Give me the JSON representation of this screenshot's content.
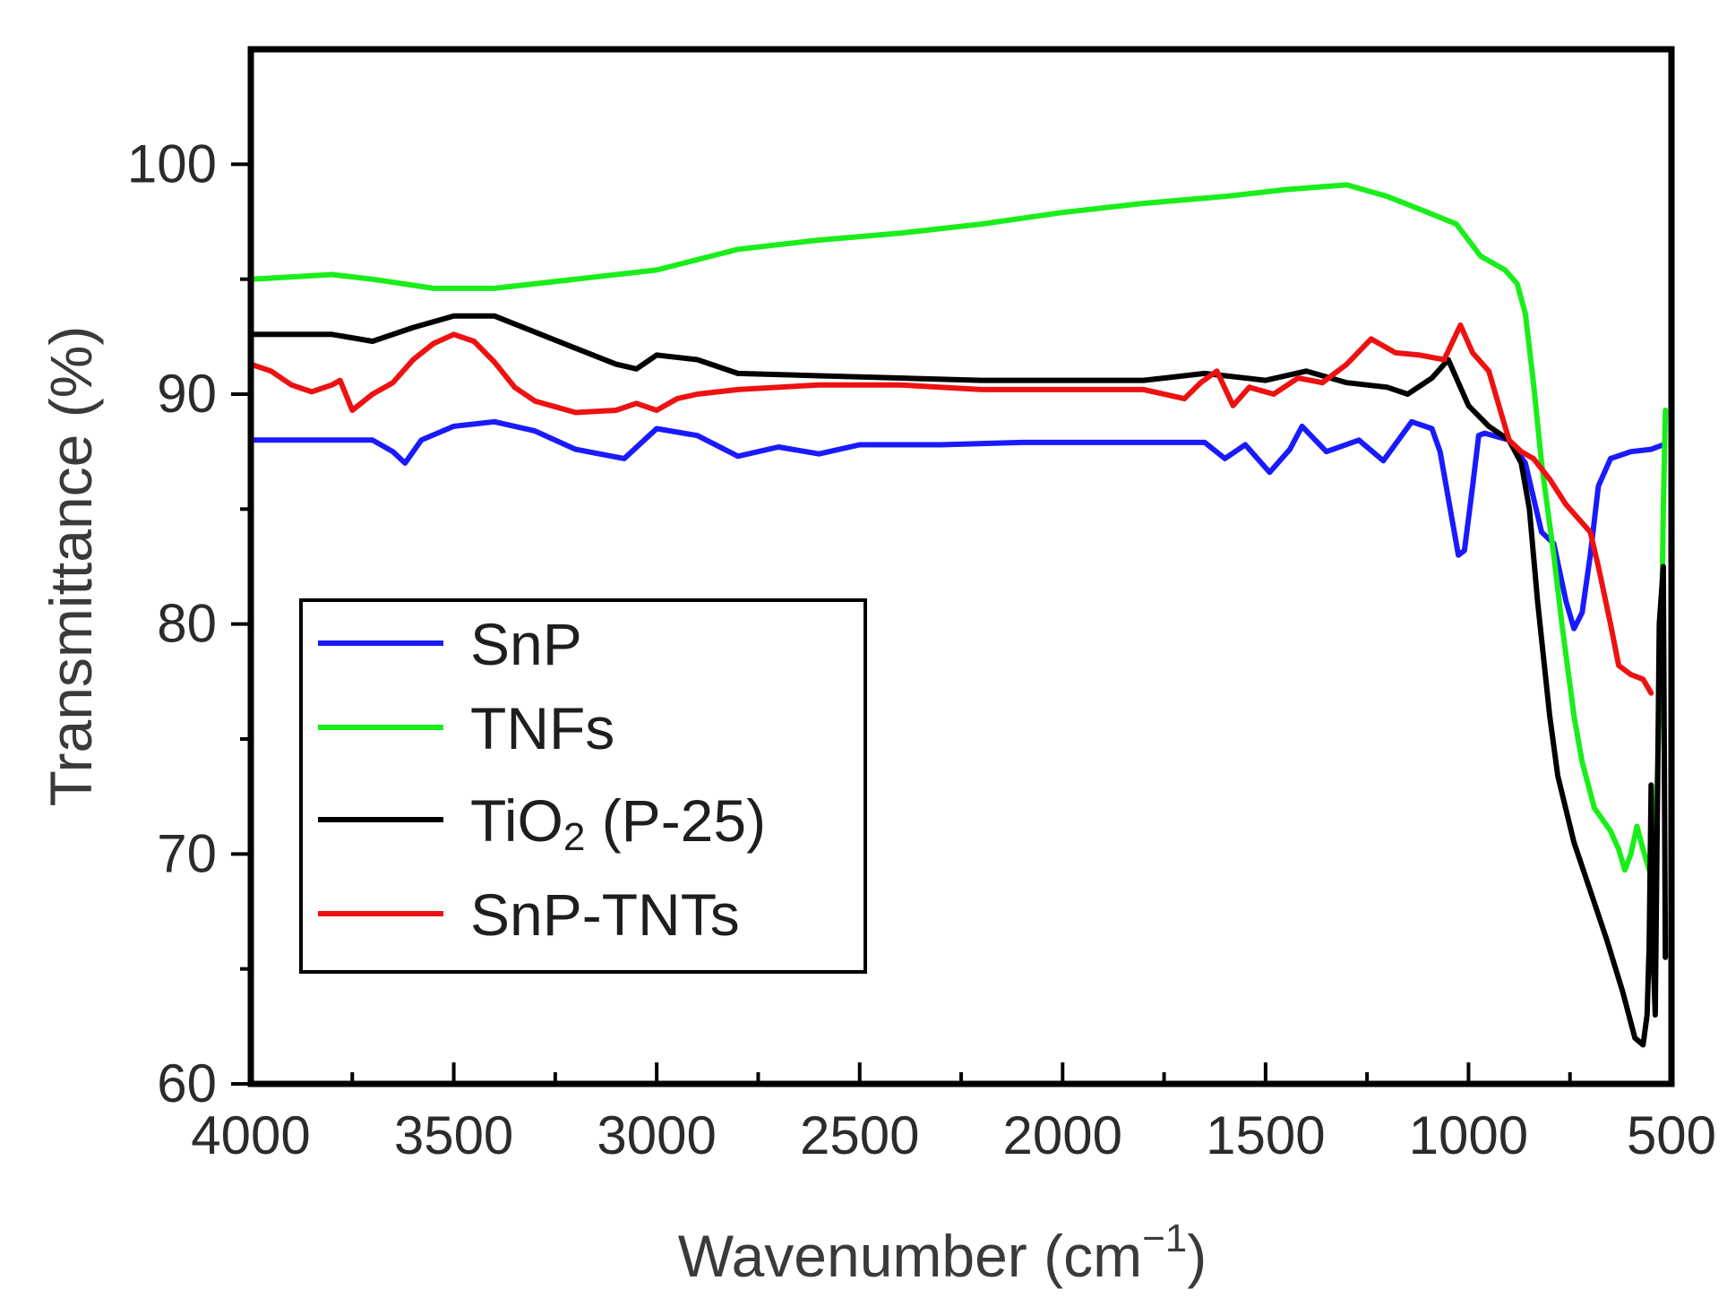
{
  "chart_data": {
    "type": "line",
    "title": "",
    "xlabel": "Wavenumber (cm⁻¹)",
    "xlabel_parts": {
      "main": "Wavenumber (cm",
      "sup": "−1",
      "close": ")"
    },
    "ylabel": "Transmittance (%)",
    "xlim": [
      4000,
      500
    ],
    "ylim": [
      60,
      105
    ],
    "x_ticks": [
      4000,
      3500,
      3000,
      2500,
      2000,
      1500,
      1000,
      500
    ],
    "x_tick_labels": [
      "4000",
      "3500",
      "3000",
      "2500",
      "2000",
      "1500",
      "1000",
      "500"
    ],
    "y_ticks": [
      60,
      70,
      80,
      90,
      100
    ],
    "y_tick_labels": [
      "60",
      "70",
      "80",
      "90",
      "100"
    ],
    "grid": false,
    "legend_position": "lower-left",
    "legend": [
      {
        "label": "SnP",
        "color": "#1a1aff"
      },
      {
        "label": "TNFs",
        "color": "#1aee1a"
      },
      {
        "label_parts": {
          "main": "TiO",
          "sub": "2",
          "rest": " (P-25)"
        },
        "label": "TiO2 (P-25)",
        "color": "#000000"
      },
      {
        "label": "SnP-TNTs",
        "color": "#ee1111"
      }
    ],
    "series": [
      {
        "name": "SnP",
        "color": "#1a1aff",
        "points": [
          [
            4000,
            88
          ],
          [
            3800,
            88
          ],
          [
            3700,
            88
          ],
          [
            3650,
            87.5
          ],
          [
            3620,
            87
          ],
          [
            3580,
            88
          ],
          [
            3500,
            88.6
          ],
          [
            3400,
            88.8
          ],
          [
            3300,
            88.4
          ],
          [
            3200,
            87.6
          ],
          [
            3080,
            87.2
          ],
          [
            3000,
            88.5
          ],
          [
            2900,
            88.2
          ],
          [
            2800,
            87.3
          ],
          [
            2700,
            87.7
          ],
          [
            2600,
            87.4
          ],
          [
            2500,
            87.8
          ],
          [
            2300,
            87.8
          ],
          [
            2100,
            87.9
          ],
          [
            1950,
            87.9
          ],
          [
            1800,
            87.9
          ],
          [
            1650,
            87.9
          ],
          [
            1600,
            87.2
          ],
          [
            1550,
            87.8
          ],
          [
            1490,
            86.6
          ],
          [
            1440,
            87.6
          ],
          [
            1410,
            88.6
          ],
          [
            1350,
            87.5
          ],
          [
            1270,
            88
          ],
          [
            1210,
            87.1
          ],
          [
            1140,
            88.8
          ],
          [
            1090,
            88.5
          ],
          [
            1070,
            87.5
          ],
          [
            1040,
            84.5
          ],
          [
            1025,
            83
          ],
          [
            1010,
            83.2
          ],
          [
            990,
            86
          ],
          [
            975,
            88.2
          ],
          [
            960,
            88.3
          ],
          [
            900,
            88
          ],
          [
            860,
            87
          ],
          [
            820,
            84
          ],
          [
            790,
            83.5
          ],
          [
            760,
            81
          ],
          [
            740,
            79.8
          ],
          [
            720,
            80.5
          ],
          [
            700,
            83
          ],
          [
            680,
            86
          ],
          [
            650,
            87.2
          ],
          [
            600,
            87.5
          ],
          [
            550,
            87.6
          ],
          [
            520,
            87.8
          ]
        ]
      },
      {
        "name": "TNFs",
        "color": "#1aee1a",
        "points": [
          [
            4000,
            95
          ],
          [
            3800,
            95.2
          ],
          [
            3700,
            95
          ],
          [
            3550,
            94.6
          ],
          [
            3400,
            94.6
          ],
          [
            3200,
            95
          ],
          [
            3000,
            95.4
          ],
          [
            2800,
            96.3
          ],
          [
            2600,
            96.7
          ],
          [
            2400,
            97
          ],
          [
            2200,
            97.4
          ],
          [
            2000,
            97.9
          ],
          [
            1800,
            98.3
          ],
          [
            1600,
            98.6
          ],
          [
            1450,
            98.9
          ],
          [
            1300,
            99.1
          ],
          [
            1200,
            98.6
          ],
          [
            1100,
            97.9
          ],
          [
            1030,
            97.4
          ],
          [
            970,
            96
          ],
          [
            910,
            95.4
          ],
          [
            880,
            94.8
          ],
          [
            860,
            93.5
          ],
          [
            840,
            90.5
          ],
          [
            820,
            87
          ],
          [
            790,
            83
          ],
          [
            770,
            80
          ],
          [
            740,
            76
          ],
          [
            720,
            74
          ],
          [
            690,
            72
          ],
          [
            650,
            71
          ],
          [
            630,
            70.2
          ],
          [
            615,
            69.3
          ],
          [
            600,
            70
          ],
          [
            585,
            71.2
          ],
          [
            570,
            70.2
          ],
          [
            555,
            69.3
          ],
          [
            540,
            70.5
          ],
          [
            525,
            79
          ],
          [
            520,
            85
          ],
          [
            515,
            89.3
          ]
        ]
      },
      {
        "name": "TiO2 (P-25)",
        "color": "#000000",
        "points": [
          [
            4000,
            92.6
          ],
          [
            3900,
            92.6
          ],
          [
            3800,
            92.6
          ],
          [
            3700,
            92.3
          ],
          [
            3600,
            92.9
          ],
          [
            3500,
            93.4
          ],
          [
            3400,
            93.4
          ],
          [
            3300,
            92.7
          ],
          [
            3200,
            92
          ],
          [
            3100,
            91.3
          ],
          [
            3050,
            91.1
          ],
          [
            3000,
            91.7
          ],
          [
            2900,
            91.5
          ],
          [
            2800,
            90.9
          ],
          [
            2600,
            90.8
          ],
          [
            2400,
            90.7
          ],
          [
            2200,
            90.6
          ],
          [
            2000,
            90.6
          ],
          [
            1800,
            90.6
          ],
          [
            1650,
            90.9
          ],
          [
            1500,
            90.6
          ],
          [
            1400,
            91
          ],
          [
            1300,
            90.5
          ],
          [
            1200,
            90.3
          ],
          [
            1150,
            90
          ],
          [
            1090,
            90.7
          ],
          [
            1050,
            91.5
          ],
          [
            1000,
            89.5
          ],
          [
            950,
            88.6
          ],
          [
            900,
            88
          ],
          [
            870,
            87
          ],
          [
            850,
            85
          ],
          [
            830,
            81
          ],
          [
            800,
            76
          ],
          [
            780,
            73.4
          ],
          [
            740,
            70.5
          ],
          [
            700,
            68.4
          ],
          [
            660,
            66.3
          ],
          [
            620,
            64
          ],
          [
            590,
            62
          ],
          [
            570,
            61.7
          ],
          [
            560,
            63
          ],
          [
            555,
            66
          ],
          [
            550,
            73
          ],
          [
            545,
            65.5
          ],
          [
            540,
            63
          ],
          [
            530,
            80
          ],
          [
            520,
            82.5
          ],
          [
            515,
            65.5
          ]
        ]
      },
      {
        "name": "SnP-TNTs",
        "color": "#ee1111",
        "points": [
          [
            4000,
            91.3
          ],
          [
            3950,
            91
          ],
          [
            3900,
            90.4
          ],
          [
            3850,
            90.1
          ],
          [
            3800,
            90.4
          ],
          [
            3780,
            90.6
          ],
          [
            3750,
            89.3
          ],
          [
            3700,
            90
          ],
          [
            3650,
            90.5
          ],
          [
            3600,
            91.5
          ],
          [
            3550,
            92.2
          ],
          [
            3500,
            92.6
          ],
          [
            3450,
            92.3
          ],
          [
            3400,
            91.4
          ],
          [
            3350,
            90.3
          ],
          [
            3300,
            89.7
          ],
          [
            3200,
            89.2
          ],
          [
            3100,
            89.3
          ],
          [
            3050,
            89.6
          ],
          [
            3000,
            89.3
          ],
          [
            2950,
            89.8
          ],
          [
            2900,
            90
          ],
          [
            2800,
            90.2
          ],
          [
            2600,
            90.4
          ],
          [
            2400,
            90.4
          ],
          [
            2200,
            90.2
          ],
          [
            2000,
            90.2
          ],
          [
            1800,
            90.2
          ],
          [
            1700,
            89.8
          ],
          [
            1660,
            90.5
          ],
          [
            1620,
            91
          ],
          [
            1580,
            89.5
          ],
          [
            1540,
            90.3
          ],
          [
            1480,
            90
          ],
          [
            1420,
            90.7
          ],
          [
            1360,
            90.5
          ],
          [
            1300,
            91.3
          ],
          [
            1240,
            92.4
          ],
          [
            1180,
            91.8
          ],
          [
            1120,
            91.7
          ],
          [
            1060,
            91.5
          ],
          [
            1020,
            93
          ],
          [
            990,
            91.8
          ],
          [
            950,
            91
          ],
          [
            900,
            88
          ],
          [
            870,
            87.5
          ],
          [
            840,
            87.2
          ],
          [
            800,
            86.3
          ],
          [
            760,
            85.2
          ],
          [
            730,
            84.6
          ],
          [
            700,
            84
          ],
          [
            680,
            82.5
          ],
          [
            650,
            80
          ],
          [
            630,
            78.2
          ],
          [
            600,
            77.8
          ],
          [
            570,
            77.6
          ],
          [
            550,
            77
          ]
        ]
      }
    ]
  }
}
